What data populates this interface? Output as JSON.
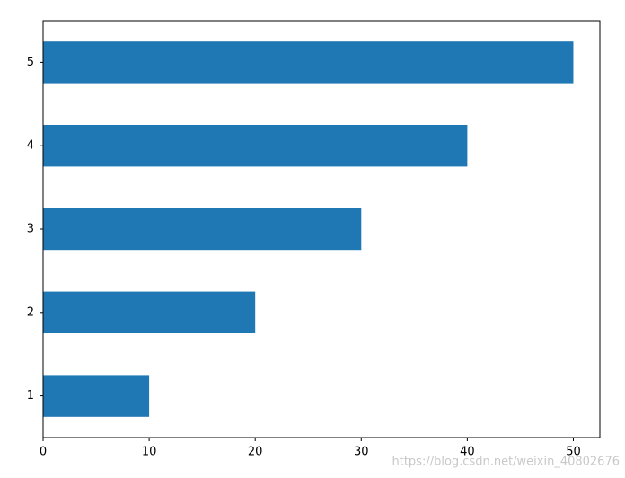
{
  "chart_data": {
    "type": "barh",
    "categories": [
      "1",
      "2",
      "3",
      "4",
      "5"
    ],
    "values": [
      10,
      20,
      30,
      40,
      50
    ],
    "color": "#1f77b4",
    "xlim": [
      0,
      52.5
    ],
    "xticks": [
      0,
      10,
      20,
      30,
      40,
      50
    ],
    "grid": false
  },
  "watermark": "https://blog.csdn.net/weixin_40802676"
}
